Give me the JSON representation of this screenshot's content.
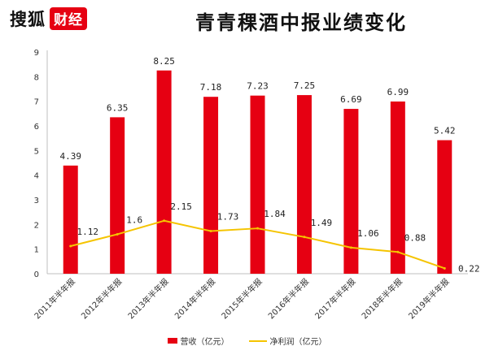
{
  "header": {
    "logo_text": "搜狐",
    "logo_badge": "财经",
    "title": "青青稞酒中报业绩变化"
  },
  "colors": {
    "bar": "#e60012",
    "line": "#f5c400",
    "brand": "#e60012"
  },
  "chart_data": {
    "type": "bar",
    "title": "青青稞酒中报业绩变化",
    "categories": [
      "2011年半年报",
      "2012年半年报",
      "2013年半年报",
      "2014年半年报",
      "2015年半年报",
      "2016年半年报",
      "2017年半年报",
      "2018年半年报",
      "2019年半年报"
    ],
    "series": [
      {
        "name": "营收（亿元）",
        "type": "bar",
        "values": [
          4.39,
          6.35,
          8.25,
          7.18,
          7.23,
          7.25,
          6.69,
          6.99,
          5.42
        ]
      },
      {
        "name": "净利润（亿元）",
        "type": "line",
        "values": [
          1.12,
          1.6,
          2.15,
          1.73,
          1.84,
          1.49,
          1.06,
          0.88,
          0.22
        ]
      }
    ],
    "ylim": [
      0,
      9
    ],
    "yticks": [
      0,
      1,
      2,
      3,
      4,
      5,
      6,
      7,
      8,
      9
    ],
    "grid": false,
    "legend": "bottom"
  }
}
